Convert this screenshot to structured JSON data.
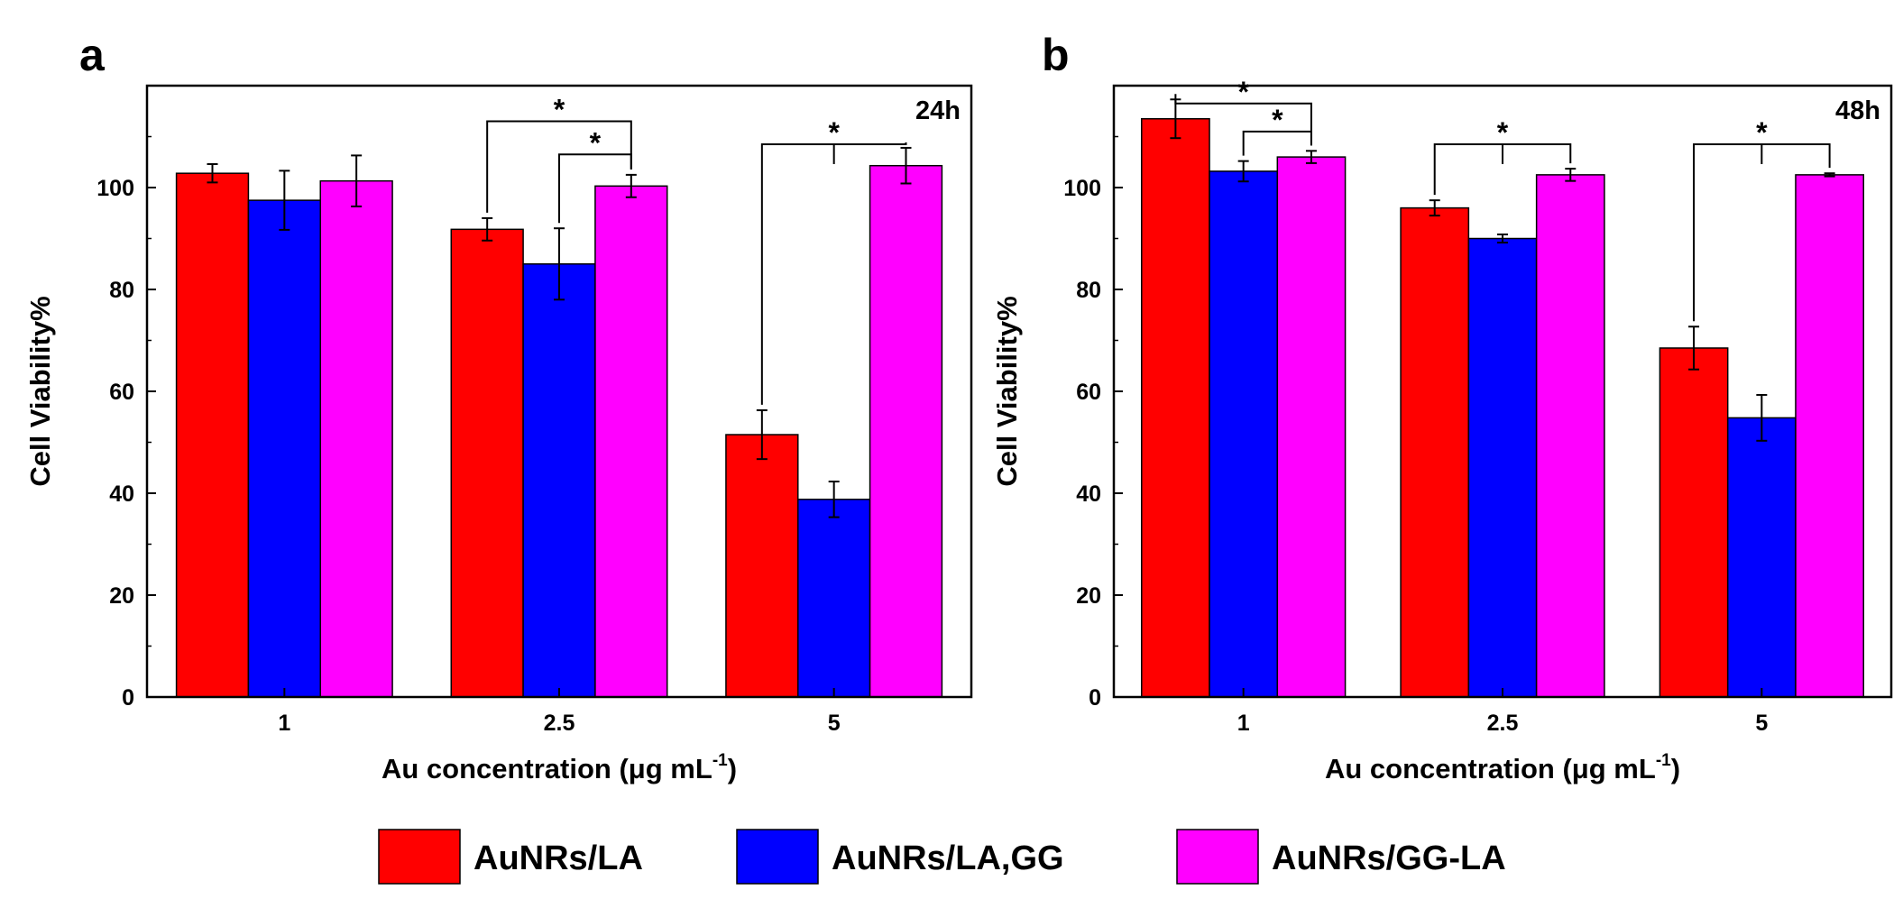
{
  "legend": [
    {
      "label": "AuNRs/LA",
      "color": "#ff0000"
    },
    {
      "label": "AuNRs/LA,GG",
      "color": "#0000ff"
    },
    {
      "label": "AuNRs/GG-LA",
      "color": "#ff00ff"
    }
  ],
  "chart_data": [
    {
      "type": "bar",
      "panel": "a",
      "annotation": "24h",
      "xlabel": "Au concentration (μg mL",
      "xlabel_superscript": "-1",
      "xlabel_close": ")",
      "ylabel": "Cell Viability%",
      "ylim": [
        0,
        120
      ],
      "yticks": [
        0,
        20,
        40,
        60,
        80,
        100
      ],
      "categories": [
        "1",
        "2.5",
        "5"
      ],
      "series": [
        {
          "name": "AuNRs/LA",
          "values": [
            102.8,
            91.8,
            51.5
          ],
          "errors": [
            1.8,
            2.2,
            4.8
          ]
        },
        {
          "name": "AuNRs/LA,GG",
          "values": [
            97.5,
            85.0,
            38.8
          ],
          "errors": [
            5.8,
            7.0,
            3.5
          ]
        },
        {
          "name": "AuNRs/GG-LA",
          "values": [
            101.3,
            100.3,
            104.3
          ],
          "errors": [
            5.0,
            2.2,
            3.5
          ]
        }
      ],
      "significance": [
        {
          "from": {
            "cat": 1,
            "series": 0
          },
          "to": {
            "cat": 1,
            "series": 2
          },
          "level": 113,
          "label": "*"
        },
        {
          "from": {
            "cat": 1,
            "series": 1
          },
          "to": {
            "cat": 1,
            "series": 2
          },
          "level": 106.5,
          "label": "*"
        },
        {
          "from": {
            "cat": 2,
            "series": 0
          },
          "to": {
            "cat": 2,
            "series": 2
          },
          "level": 108.5,
          "label": "*",
          "center_tick": true
        }
      ]
    },
    {
      "type": "bar",
      "panel": "b",
      "annotation": "48h",
      "xlabel": "Au concentration (μg mL",
      "xlabel_superscript": "-1",
      "xlabel_close": ")",
      "ylabel": "Cell Viability%",
      "ylim": [
        0,
        120
      ],
      "yticks": [
        0,
        20,
        40,
        60,
        80,
        100
      ],
      "categories": [
        "1",
        "2.5",
        "5"
      ],
      "series": [
        {
          "name": "AuNRs/LA",
          "values": [
            113.5,
            96.0,
            68.5
          ],
          "errors": [
            3.8,
            1.5,
            4.2
          ]
        },
        {
          "name": "AuNRs/LA,GG",
          "values": [
            103.2,
            90.0,
            54.8
          ],
          "errors": [
            2.0,
            0.8,
            4.5
          ]
        },
        {
          "name": "AuNRs/GG-LA",
          "values": [
            106.0,
            102.5,
            102.5
          ],
          "errors": [
            1.2,
            1.2,
            0.3
          ]
        }
      ],
      "significance": [
        {
          "from": {
            "cat": 0,
            "series": 0
          },
          "to": {
            "cat": 0,
            "series": 2
          },
          "level": 116.5,
          "label": "*"
        },
        {
          "from": {
            "cat": 0,
            "series": 1
          },
          "to": {
            "cat": 0,
            "series": 2
          },
          "level": 111,
          "label": "*"
        },
        {
          "from": {
            "cat": 1,
            "series": 0
          },
          "to": {
            "cat": 1,
            "series": 2
          },
          "level": 108.5,
          "label": "*",
          "center_tick": true
        },
        {
          "from": {
            "cat": 2,
            "series": 0
          },
          "to": {
            "cat": 2,
            "series": 2
          },
          "level": 108.5,
          "label": "*",
          "center_tick": true
        }
      ]
    }
  ]
}
